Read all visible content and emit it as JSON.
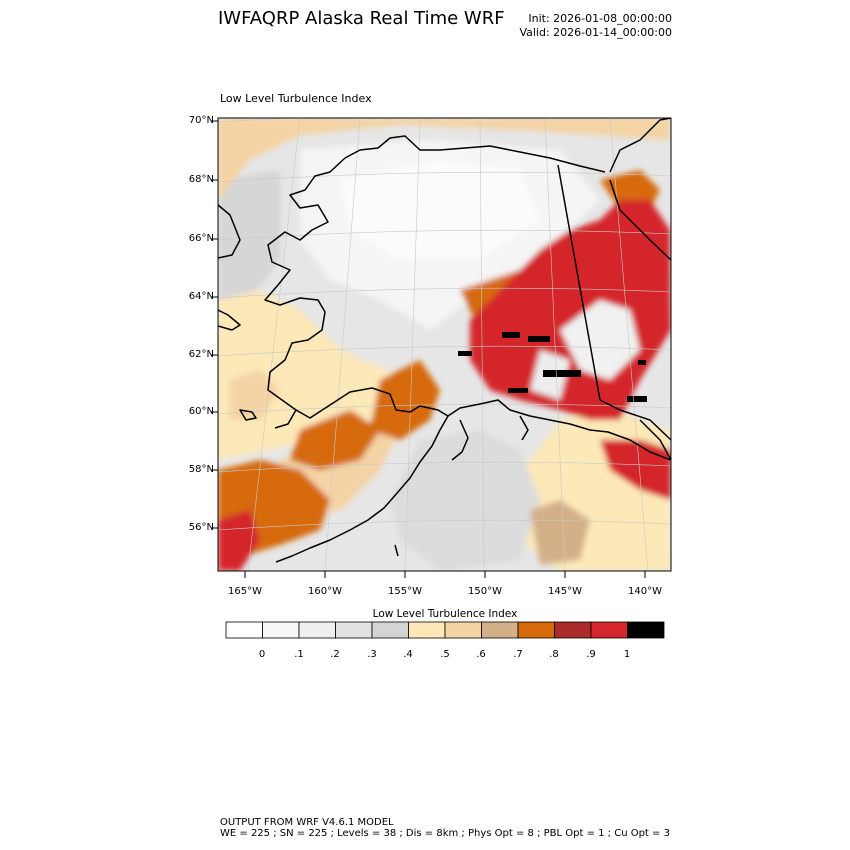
{
  "header": {
    "title": "IWFAQRP Alaska Real Time WRF",
    "init": "Init: 2026-01-08_00:00:00",
    "valid": "Valid: 2026-01-14_00:00:00"
  },
  "plot": {
    "subtitle": "Low Level Turbulence Index",
    "lat_labels": [
      "70°N",
      "68°N",
      "66°N",
      "64°N",
      "62°N",
      "60°N",
      "58°N",
      "56°N"
    ],
    "lon_labels": [
      "165°W",
      "160°W",
      "155°W",
      "150°W",
      "145°W",
      "140°W"
    ]
  },
  "colorbar": {
    "title": "Low Level Turbulence Index",
    "colors": [
      "#ffffff",
      "#f7f7f7",
      "#efefef",
      "#e2e2e2",
      "#d4d4d4",
      "#fde8b8",
      "#f4d3a4",
      "#d4b088",
      "#d66a0a",
      "#ab2a2a",
      "#d4262b",
      "#000000"
    ],
    "labels": [
      "0",
      ".1",
      ".2",
      ".3",
      ".4",
      ".5",
      ".6",
      ".7",
      ".8",
      ".9",
      "1"
    ]
  },
  "footer": {
    "line1": "OUTPUT FROM WRF V4.6.1 MODEL",
    "line2": "WE = 225 ; SN = 225 ; Levels = 38 ; Dis = 8km ; Phys Opt = 8 ; PBL Opt = 1 ; Cu Opt = 3"
  }
}
